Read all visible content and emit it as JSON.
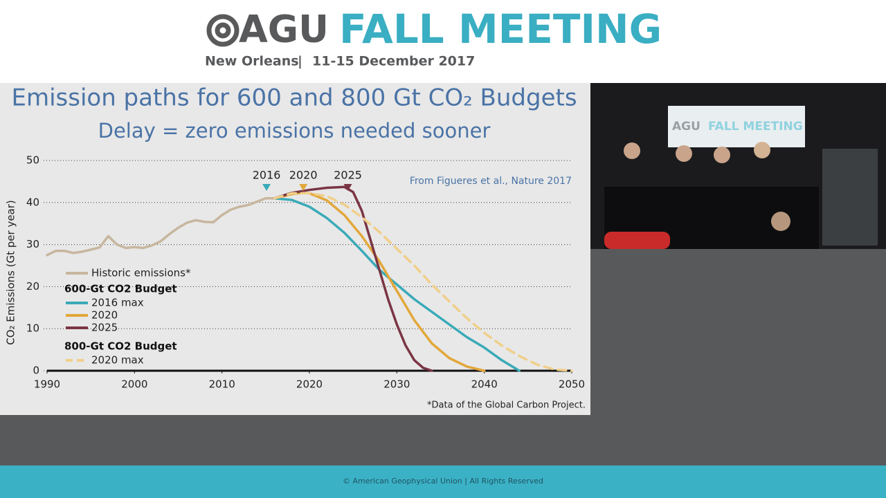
{
  "header": {
    "org": "AGU",
    "event": "FALL MEETING",
    "city": "New Orleans",
    "separator": "|",
    "dates": "11-15 December 2017"
  },
  "video": {
    "banner_org": "AGU",
    "banner_event": "FALL MEETING"
  },
  "footer": "© American Geophysical Union | All Rights Reserved",
  "chart_data": {
    "type": "line",
    "title": "Emission paths for 600 and 800 Gt CO₂ Budgets",
    "subtitle": "Delay = zero emissions needed sooner",
    "y_label": "CO₂ Emissions (Gt per year)",
    "source": "From Figueres et al., Nature 2017",
    "footnote": "*Data of the Global Carbon Project.",
    "xlim": [
      1990,
      2050
    ],
    "xticks": [
      1990,
      2000,
      2010,
      2020,
      2030,
      2040,
      2050
    ],
    "ylim": [
      0,
      50
    ],
    "yticks": [
      0,
      10,
      20,
      30,
      40,
      50
    ],
    "grid": true,
    "legend_headings": [
      "600-Gt CO2 Budget",
      "800-Gt CO2 Budget"
    ],
    "annotations": [
      {
        "text": "2016",
        "x": 2015.1,
        "color": "#3aaab8"
      },
      {
        "text": "2020",
        "x": 2019.3,
        "color": "#e2a73a"
      },
      {
        "text": "2025",
        "x": 2024.4,
        "color": "#7a3544"
      }
    ],
    "series": [
      {
        "name": "Historic emissions*",
        "color": "#c7b69e",
        "dashed": false,
        "x": [
          1990,
          1991,
          1992,
          1993,
          1994,
          1995,
          1996,
          1997,
          1998,
          1999,
          2000,
          2001,
          2002,
          2003,
          2004,
          2005,
          2006,
          2007,
          2008,
          2009,
          2010,
          2011,
          2012,
          2013,
          2014,
          2015,
          2016
        ],
        "values": [
          27.5,
          28.5,
          28.5,
          28,
          28.3,
          28.8,
          29.3,
          32,
          30,
          29.2,
          29.4,
          29.2,
          29.8,
          30.8,
          32.5,
          34,
          35.2,
          35.8,
          35.4,
          35.3,
          37,
          38.3,
          39,
          39.4,
          40.2,
          41,
          41
        ]
      },
      {
        "name": "2016 max",
        "color": "#3aaab8",
        "dashed": false,
        "x": [
          2016,
          2018,
          2020,
          2022,
          2024,
          2026,
          2028,
          2030,
          2032,
          2034,
          2036,
          2038,
          2040,
          2042,
          2044
        ],
        "values": [
          41,
          40.6,
          39,
          36.3,
          32.8,
          28.5,
          24,
          20.5,
          17,
          14,
          11,
          8,
          5.5,
          2.5,
          0
        ]
      },
      {
        "name": "2020",
        "color": "#e2a73a",
        "dashed": false,
        "x": [
          2016,
          2018,
          2019,
          2020,
          2022,
          2024,
          2026,
          2028,
          2030,
          2032,
          2034,
          2036,
          2038,
          2040
        ],
        "values": [
          41,
          42,
          42.3,
          42.2,
          40.5,
          37,
          32,
          26,
          19,
          12,
          6.5,
          3,
          1,
          0
        ]
      },
      {
        "name": "2025",
        "color": "#7a3544",
        "dashed": false,
        "x": [
          2016,
          2018,
          2020,
          2022,
          2024,
          2025,
          2026,
          2027,
          2028,
          2029,
          2030,
          2031,
          2032,
          2033,
          2034
        ],
        "values": [
          41,
          42.3,
          43,
          43.5,
          43.7,
          42.5,
          38,
          31,
          24,
          17,
          11,
          6,
          2.5,
          0.7,
          0
        ]
      },
      {
        "name": "2020 max",
        "color": "#f0cf8a",
        "dashed": true,
        "x": [
          2016,
          2018,
          2020,
          2022,
          2024,
          2026,
          2028,
          2030,
          2032,
          2034,
          2036,
          2038,
          2040,
          2042,
          2044,
          2046,
          2048,
          2050
        ],
        "values": [
          41,
          42.2,
          42.2,
          41.5,
          39.5,
          36.5,
          33,
          29,
          25,
          20.5,
          16.5,
          12.5,
          9,
          6,
          3.5,
          1.5,
          0.3,
          0
        ]
      }
    ]
  }
}
